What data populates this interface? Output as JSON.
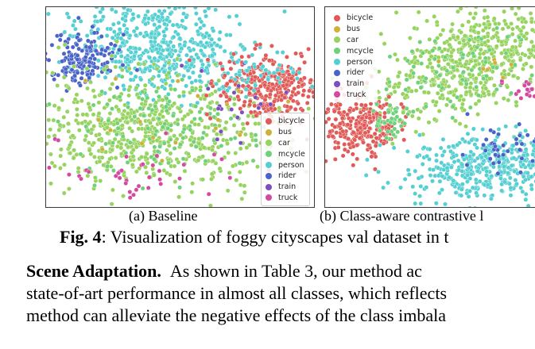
{
  "figure": {
    "legend": [
      {
        "label": "bicycle",
        "color": "#e05a57"
      },
      {
        "label": "bus",
        "color": "#cfb13a"
      },
      {
        "label": "car",
        "color": "#96d35f"
      },
      {
        "label": "mcycle",
        "color": "#6fd27a"
      },
      {
        "label": "person",
        "color": "#55cfd1"
      },
      {
        "label": "rider",
        "color": "#4a63c8"
      },
      {
        "label": "train",
        "color": "#7b4fbf"
      },
      {
        "label": "truck",
        "color": "#d34aa0"
      }
    ],
    "subfig_a_caption": "(a) Baseline",
    "subfig_b_caption": "(b) Class-aware contrastive l",
    "caption_label": "Fig. 4",
    "caption_text": ": Visualization of foggy cityscapes val dataset in t"
  },
  "paragraph": {
    "heading": "Scene Adaptation.",
    "line1_rest": "As shown in Table 3, our method ac",
    "line2": "state-of-art performance in almost all classes, which reflects",
    "line3": "method can alleviate the negative effects of the class imbala"
  }
}
